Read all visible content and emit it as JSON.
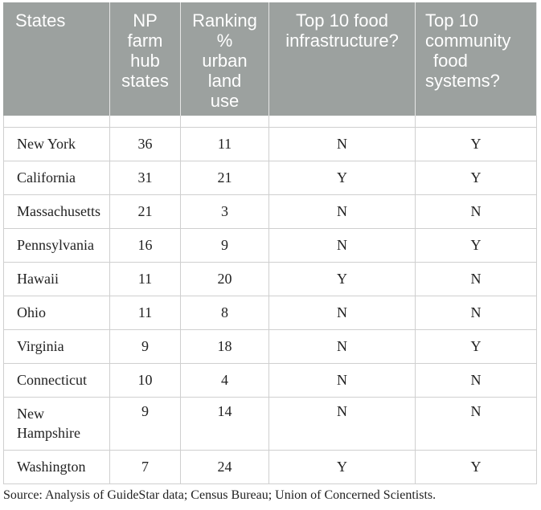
{
  "table": {
    "headers": [
      [
        "States"
      ],
      [
        "NP",
        "farm",
        "hub",
        "states"
      ],
      [
        "Ranking",
        "%",
        "urban",
        "land",
        "use"
      ],
      [
        "Top 10 food",
        "infrastructure?"
      ],
      [
        "Top 10",
        "community",
        "food",
        "systems?"
      ]
    ],
    "rows": [
      {
        "state": "New York",
        "np": "36",
        "rank": "11",
        "infra": "N",
        "community": "Y"
      },
      {
        "state": "California",
        "np": "31",
        "rank": "21",
        "infra": "Y",
        "community": "Y"
      },
      {
        "state": "Massachusetts",
        "np": "21",
        "rank": "3",
        "infra": "N",
        "community": "N"
      },
      {
        "state": "Pennsylvania",
        "np": "16",
        "rank": "9",
        "infra": "N",
        "community": "Y"
      },
      {
        "state": "Hawaii",
        "np": "11",
        "rank": "20",
        "infra": "Y",
        "community": "N"
      },
      {
        "state": "Ohio",
        "np": "11",
        "rank": "8",
        "infra": "N",
        "community": "N"
      },
      {
        "state": "Virginia",
        "np": "9",
        "rank": "18",
        "infra": "N",
        "community": "Y"
      },
      {
        "state": "Connecticut",
        "np": "10",
        "rank": "4",
        "infra": "N",
        "community": "N"
      },
      {
        "state": "New Hampshire",
        "np": "9",
        "rank": "14",
        "infra": "N",
        "community": "N"
      },
      {
        "state": "Washington",
        "np": "7",
        "rank": "24",
        "infra": "Y",
        "community": "Y"
      }
    ]
  },
  "caption": "Source: Analysis of GuideStar data; Census Bureau; Union of Concerned Scientists."
}
